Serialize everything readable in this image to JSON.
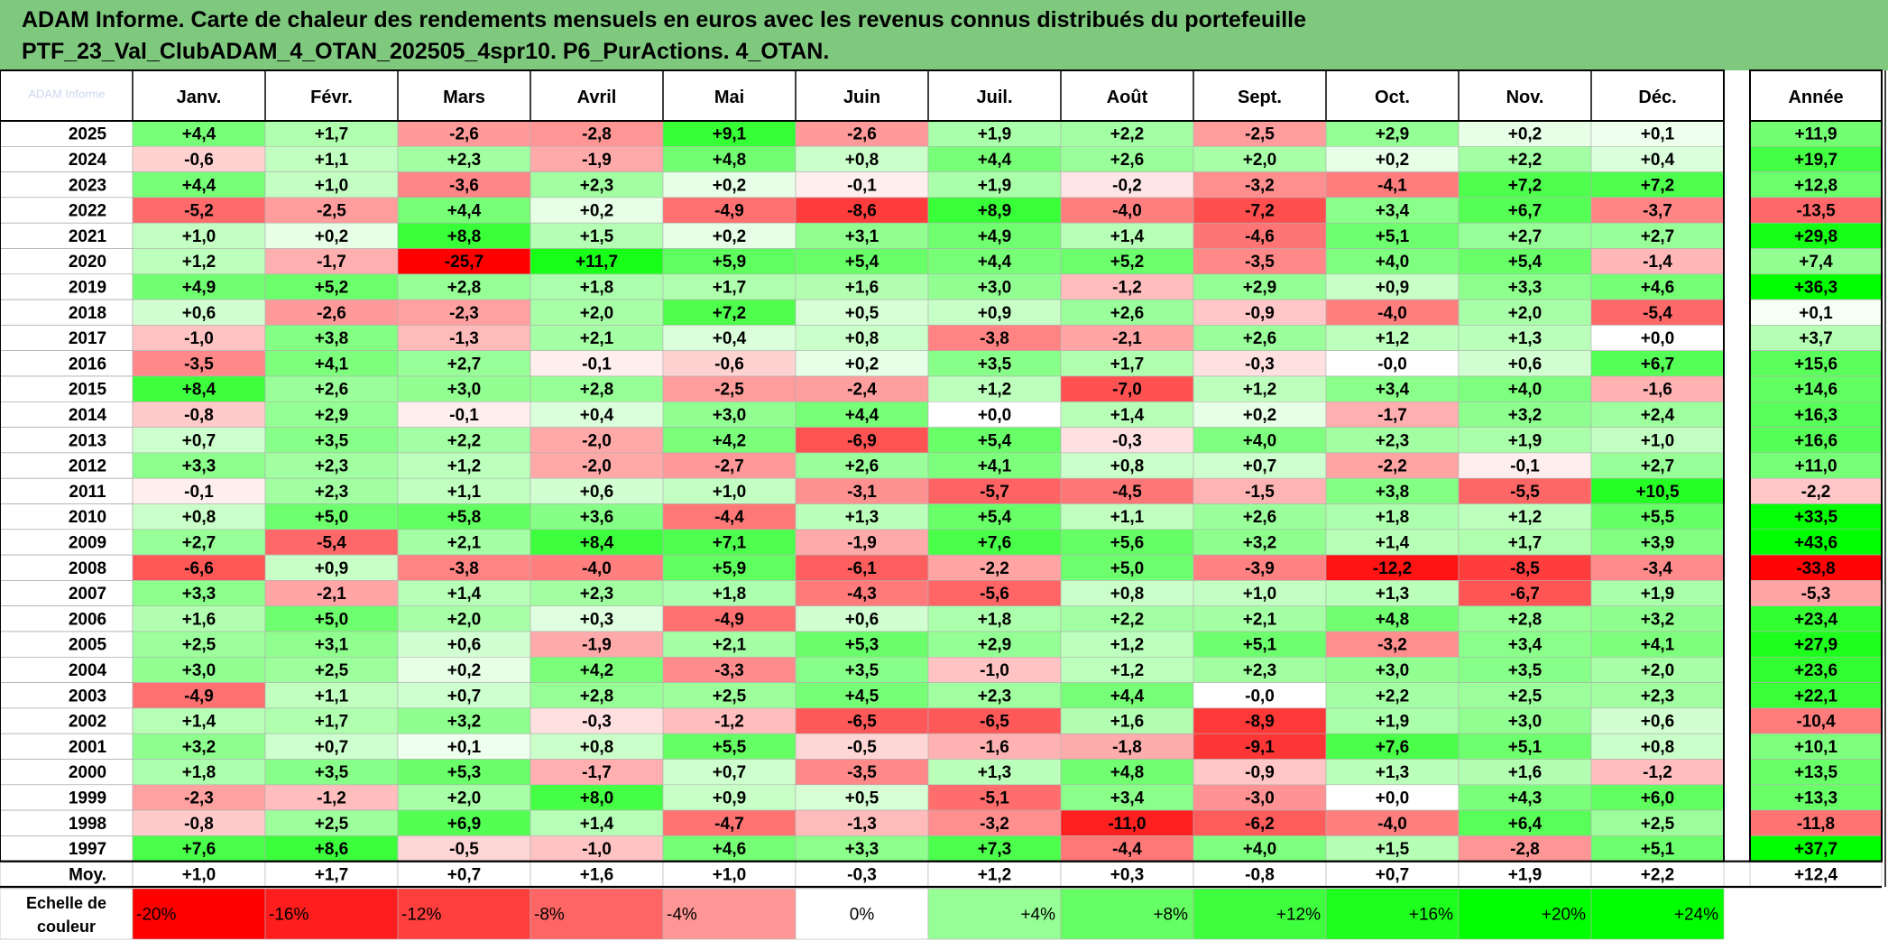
{
  "title": {
    "line1": "ADAM Informe. Carte de chaleur des rendements mensuels en euros avec les revenus connus distribués du portefeuille",
    "line2": "PTF_23_Val_ClubADAM_4_OTAN_202505_4spr10. P6_PurActions. 4_OTAN."
  },
  "corner_label": "ADAM Informe",
  "chart_data": {
    "type": "heatmap",
    "title": "ADAM Informe. Carte de chaleur des rendements mensuels en euros avec les revenus connus distribués du portefeuille PTF_23_Val_ClubADAM_4_OTAN_202505_4spr10. P6_PurActions. 4_OTAN.",
    "columns": [
      "Janv.",
      "Févr.",
      "Mars",
      "Avril",
      "Mai",
      "Juin",
      "Juil.",
      "Août",
      "Sept.",
      "Oct.",
      "Nov.",
      "Déc."
    ],
    "annual_header": "Année",
    "rows": [
      {
        "year": "2025",
        "values": [
          "+4,4",
          "+1,7",
          "-2,6",
          "-2,8",
          "+9,1",
          "-2,6",
          "+1,9",
          "+2,2",
          "-2,5",
          "+2,9",
          "+0,2",
          "+0,1"
        ],
        "annual": "+11,9"
      },
      {
        "year": "2024",
        "values": [
          "-0,6",
          "+1,1",
          "+2,3",
          "-1,9",
          "+4,8",
          "+0,8",
          "+4,4",
          "+2,6",
          "+2,0",
          "+0,2",
          "+2,2",
          "+0,4"
        ],
        "annual": "+19,7"
      },
      {
        "year": "2023",
        "values": [
          "+4,4",
          "+1,0",
          "-3,6",
          "+2,3",
          "+0,2",
          "-0,1",
          "+1,9",
          "-0,2",
          "-3,2",
          "-4,1",
          "+7,2",
          "+7,2"
        ],
        "annual": "+12,8"
      },
      {
        "year": "2022",
        "values": [
          "-5,2",
          "-2,5",
          "+4,4",
          "+0,2",
          "-4,9",
          "-8,6",
          "+8,9",
          "-4,0",
          "-7,2",
          "+3,4",
          "+6,7",
          "-3,7"
        ],
        "annual": "-13,5"
      },
      {
        "year": "2021",
        "values": [
          "+1,0",
          "+0,2",
          "+8,8",
          "+1,5",
          "+0,2",
          "+3,1",
          "+4,9",
          "+1,4",
          "-4,6",
          "+5,1",
          "+2,7",
          "+2,7"
        ],
        "annual": "+29,8"
      },
      {
        "year": "2020",
        "values": [
          "+1,2",
          "-1,7",
          "-25,7",
          "+11,7",
          "+5,9",
          "+5,4",
          "+4,4",
          "+5,2",
          "-3,5",
          "+4,0",
          "+5,4",
          "-1,4"
        ],
        "annual": "+7,4"
      },
      {
        "year": "2019",
        "values": [
          "+4,9",
          "+5,2",
          "+2,8",
          "+1,8",
          "+1,7",
          "+1,6",
          "+3,0",
          "-1,2",
          "+2,9",
          "+0,9",
          "+3,3",
          "+4,6"
        ],
        "annual": "+36,3"
      },
      {
        "year": "2018",
        "values": [
          "+0,6",
          "-2,6",
          "-2,3",
          "+2,0",
          "+7,2",
          "+0,5",
          "+0,9",
          "+2,6",
          "-0,9",
          "-4,0",
          "+2,0",
          "-5,4"
        ],
        "annual": "+0,1"
      },
      {
        "year": "2017",
        "values": [
          "-1,0",
          "+3,8",
          "-1,3",
          "+2,1",
          "+0,4",
          "+0,8",
          "-3,8",
          "-2,1",
          "+2,6",
          "+1,2",
          "+1,3",
          "+0,0"
        ],
        "annual": "+3,7"
      },
      {
        "year": "2016",
        "values": [
          "-3,5",
          "+4,1",
          "+2,7",
          "-0,1",
          "-0,6",
          "+0,2",
          "+3,5",
          "+1,7",
          "-0,3",
          "-0,0",
          "+0,6",
          "+6,7"
        ],
        "annual": "+15,6"
      },
      {
        "year": "2015",
        "values": [
          "+8,4",
          "+2,6",
          "+3,0",
          "+2,8",
          "-2,5",
          "-2,4",
          "+1,2",
          "-7,0",
          "+1,2",
          "+3,4",
          "+4,0",
          "-1,6"
        ],
        "annual": "+14,6"
      },
      {
        "year": "2014",
        "values": [
          "-0,8",
          "+2,9",
          "-0,1",
          "+0,4",
          "+3,0",
          "+4,4",
          "+0,0",
          "+1,4",
          "+0,2",
          "-1,7",
          "+3,2",
          "+2,4"
        ],
        "annual": "+16,3"
      },
      {
        "year": "2013",
        "values": [
          "+0,7",
          "+3,5",
          "+2,2",
          "-2,0",
          "+4,2",
          "-6,9",
          "+5,4",
          "-0,3",
          "+4,0",
          "+2,3",
          "+1,9",
          "+1,0"
        ],
        "annual": "+16,6"
      },
      {
        "year": "2012",
        "values": [
          "+3,3",
          "+2,3",
          "+1,2",
          "-2,0",
          "-2,7",
          "+2,6",
          "+4,1",
          "+0,8",
          "+0,7",
          "-2,2",
          "-0,1",
          "+2,7"
        ],
        "annual": "+11,0"
      },
      {
        "year": "2011",
        "values": [
          "-0,1",
          "+2,3",
          "+1,1",
          "+0,6",
          "+1,0",
          "-3,1",
          "-5,7",
          "-4,5",
          "-1,5",
          "+3,8",
          "-5,5",
          "+10,5"
        ],
        "annual": "-2,2"
      },
      {
        "year": "2010",
        "values": [
          "+0,8",
          "+5,0",
          "+5,8",
          "+3,6",
          "-4,4",
          "+1,3",
          "+5,4",
          "+1,1",
          "+2,6",
          "+1,8",
          "+1,2",
          "+5,5"
        ],
        "annual": "+33,5"
      },
      {
        "year": "2009",
        "values": [
          "+2,7",
          "-5,4",
          "+2,1",
          "+8,4",
          "+7,1",
          "-1,9",
          "+7,6",
          "+5,6",
          "+3,2",
          "+1,4",
          "+1,7",
          "+3,9"
        ],
        "annual": "+43,6"
      },
      {
        "year": "2008",
        "values": [
          "-6,6",
          "+0,9",
          "-3,8",
          "-4,0",
          "+5,9",
          "-6,1",
          "-2,2",
          "+5,0",
          "-3,9",
          "-12,2",
          "-8,5",
          "-3,4"
        ],
        "annual": "-33,8"
      },
      {
        "year": "2007",
        "values": [
          "+3,3",
          "-2,1",
          "+1,4",
          "+2,3",
          "+1,8",
          "-4,3",
          "-5,6",
          "+0,8",
          "+1,0",
          "+1,3",
          "-6,7",
          "+1,9"
        ],
        "annual": "-5,3"
      },
      {
        "year": "2006",
        "values": [
          "+1,6",
          "+5,0",
          "+2,0",
          "+0,3",
          "-4,9",
          "+0,6",
          "+1,8",
          "+2,2",
          "+2,1",
          "+4,8",
          "+2,8",
          "+3,2"
        ],
        "annual": "+23,4"
      },
      {
        "year": "2005",
        "values": [
          "+2,5",
          "+3,1",
          "+0,6",
          "-1,9",
          "+2,1",
          "+5,3",
          "+2,9",
          "+1,2",
          "+5,1",
          "-3,2",
          "+3,4",
          "+4,1"
        ],
        "annual": "+27,9"
      },
      {
        "year": "2004",
        "values": [
          "+3,0",
          "+2,5",
          "+0,2",
          "+4,2",
          "-3,3",
          "+3,5",
          "-1,0",
          "+1,2",
          "+2,3",
          "+3,0",
          "+3,5",
          "+2,0"
        ],
        "annual": "+23,6"
      },
      {
        "year": "2003",
        "values": [
          "-4,9",
          "+1,1",
          "+0,7",
          "+2,8",
          "+2,5",
          "+4,5",
          "+2,3",
          "+4,4",
          "-0,0",
          "+2,2",
          "+2,5",
          "+2,3"
        ],
        "annual": "+22,1"
      },
      {
        "year": "2002",
        "values": [
          "+1,4",
          "+1,7",
          "+3,2",
          "-0,3",
          "-1,2",
          "-6,5",
          "-6,5",
          "+1,6",
          "-8,9",
          "+1,9",
          "+3,0",
          "+0,6"
        ],
        "annual": "-10,4"
      },
      {
        "year": "2001",
        "values": [
          "+3,2",
          "+0,7",
          "+0,1",
          "+0,8",
          "+5,5",
          "-0,5",
          "-1,6",
          "-1,8",
          "-9,1",
          "+7,6",
          "+5,1",
          "+0,8"
        ],
        "annual": "+10,1"
      },
      {
        "year": "2000",
        "values": [
          "+1,8",
          "+3,5",
          "+5,3",
          "-1,7",
          "+0,7",
          "-3,5",
          "+1,3",
          "+4,8",
          "-0,9",
          "+1,3",
          "+1,6",
          "-1,2"
        ],
        "annual": "+13,5"
      },
      {
        "year": "1999",
        "values": [
          "-2,3",
          "-1,2",
          "+2,0",
          "+8,0",
          "+0,9",
          "+0,5",
          "-5,1",
          "+3,4",
          "-3,0",
          "+0,0",
          "+4,3",
          "+6,0"
        ],
        "annual": "+13,3"
      },
      {
        "year": "1998",
        "values": [
          "-0,8",
          "+2,5",
          "+6,9",
          "+1,4",
          "-4,7",
          "-1,3",
          "-3,2",
          "-11,0",
          "-6,2",
          "-4,0",
          "+6,4",
          "+2,5"
        ],
        "annual": "-11,8"
      },
      {
        "year": "1997",
        "values": [
          "+7,6",
          "+8,6",
          "-0,5",
          "-1,0",
          "+4,6",
          "+3,3",
          "+7,3",
          "-4,4",
          "+4,0",
          "+1,5",
          "-2,8",
          "+5,1"
        ],
        "annual": "+37,7"
      }
    ],
    "average": {
      "label": "Moy.",
      "values": [
        "+1,0",
        "+1,7",
        "+0,7",
        "+1,6",
        "+1,0",
        "-0,3",
        "+1,2",
        "+0,3",
        "-0,8",
        "+0,7",
        "+1,9",
        "+2,2"
      ],
      "annual": "+12,4"
    },
    "scale": {
      "label_line1": "Echelle de",
      "label_line2": "couleur",
      "steps": [
        "-20%",
        "-16%",
        "-12%",
        "-8%",
        "-4%",
        "0%",
        "+4%",
        "+8%",
        "+12%",
        "+16%",
        "+20%",
        "+24%"
      ],
      "step_values": [
        -20,
        -16,
        -12,
        -8,
        -4,
        0,
        4,
        8,
        12,
        16,
        20,
        24
      ]
    },
    "colors": {
      "negative_max": "#ff0000",
      "neutral": "#ffffff",
      "positive_max": "#00ff00",
      "title_band": "#7fc97f"
    }
  }
}
